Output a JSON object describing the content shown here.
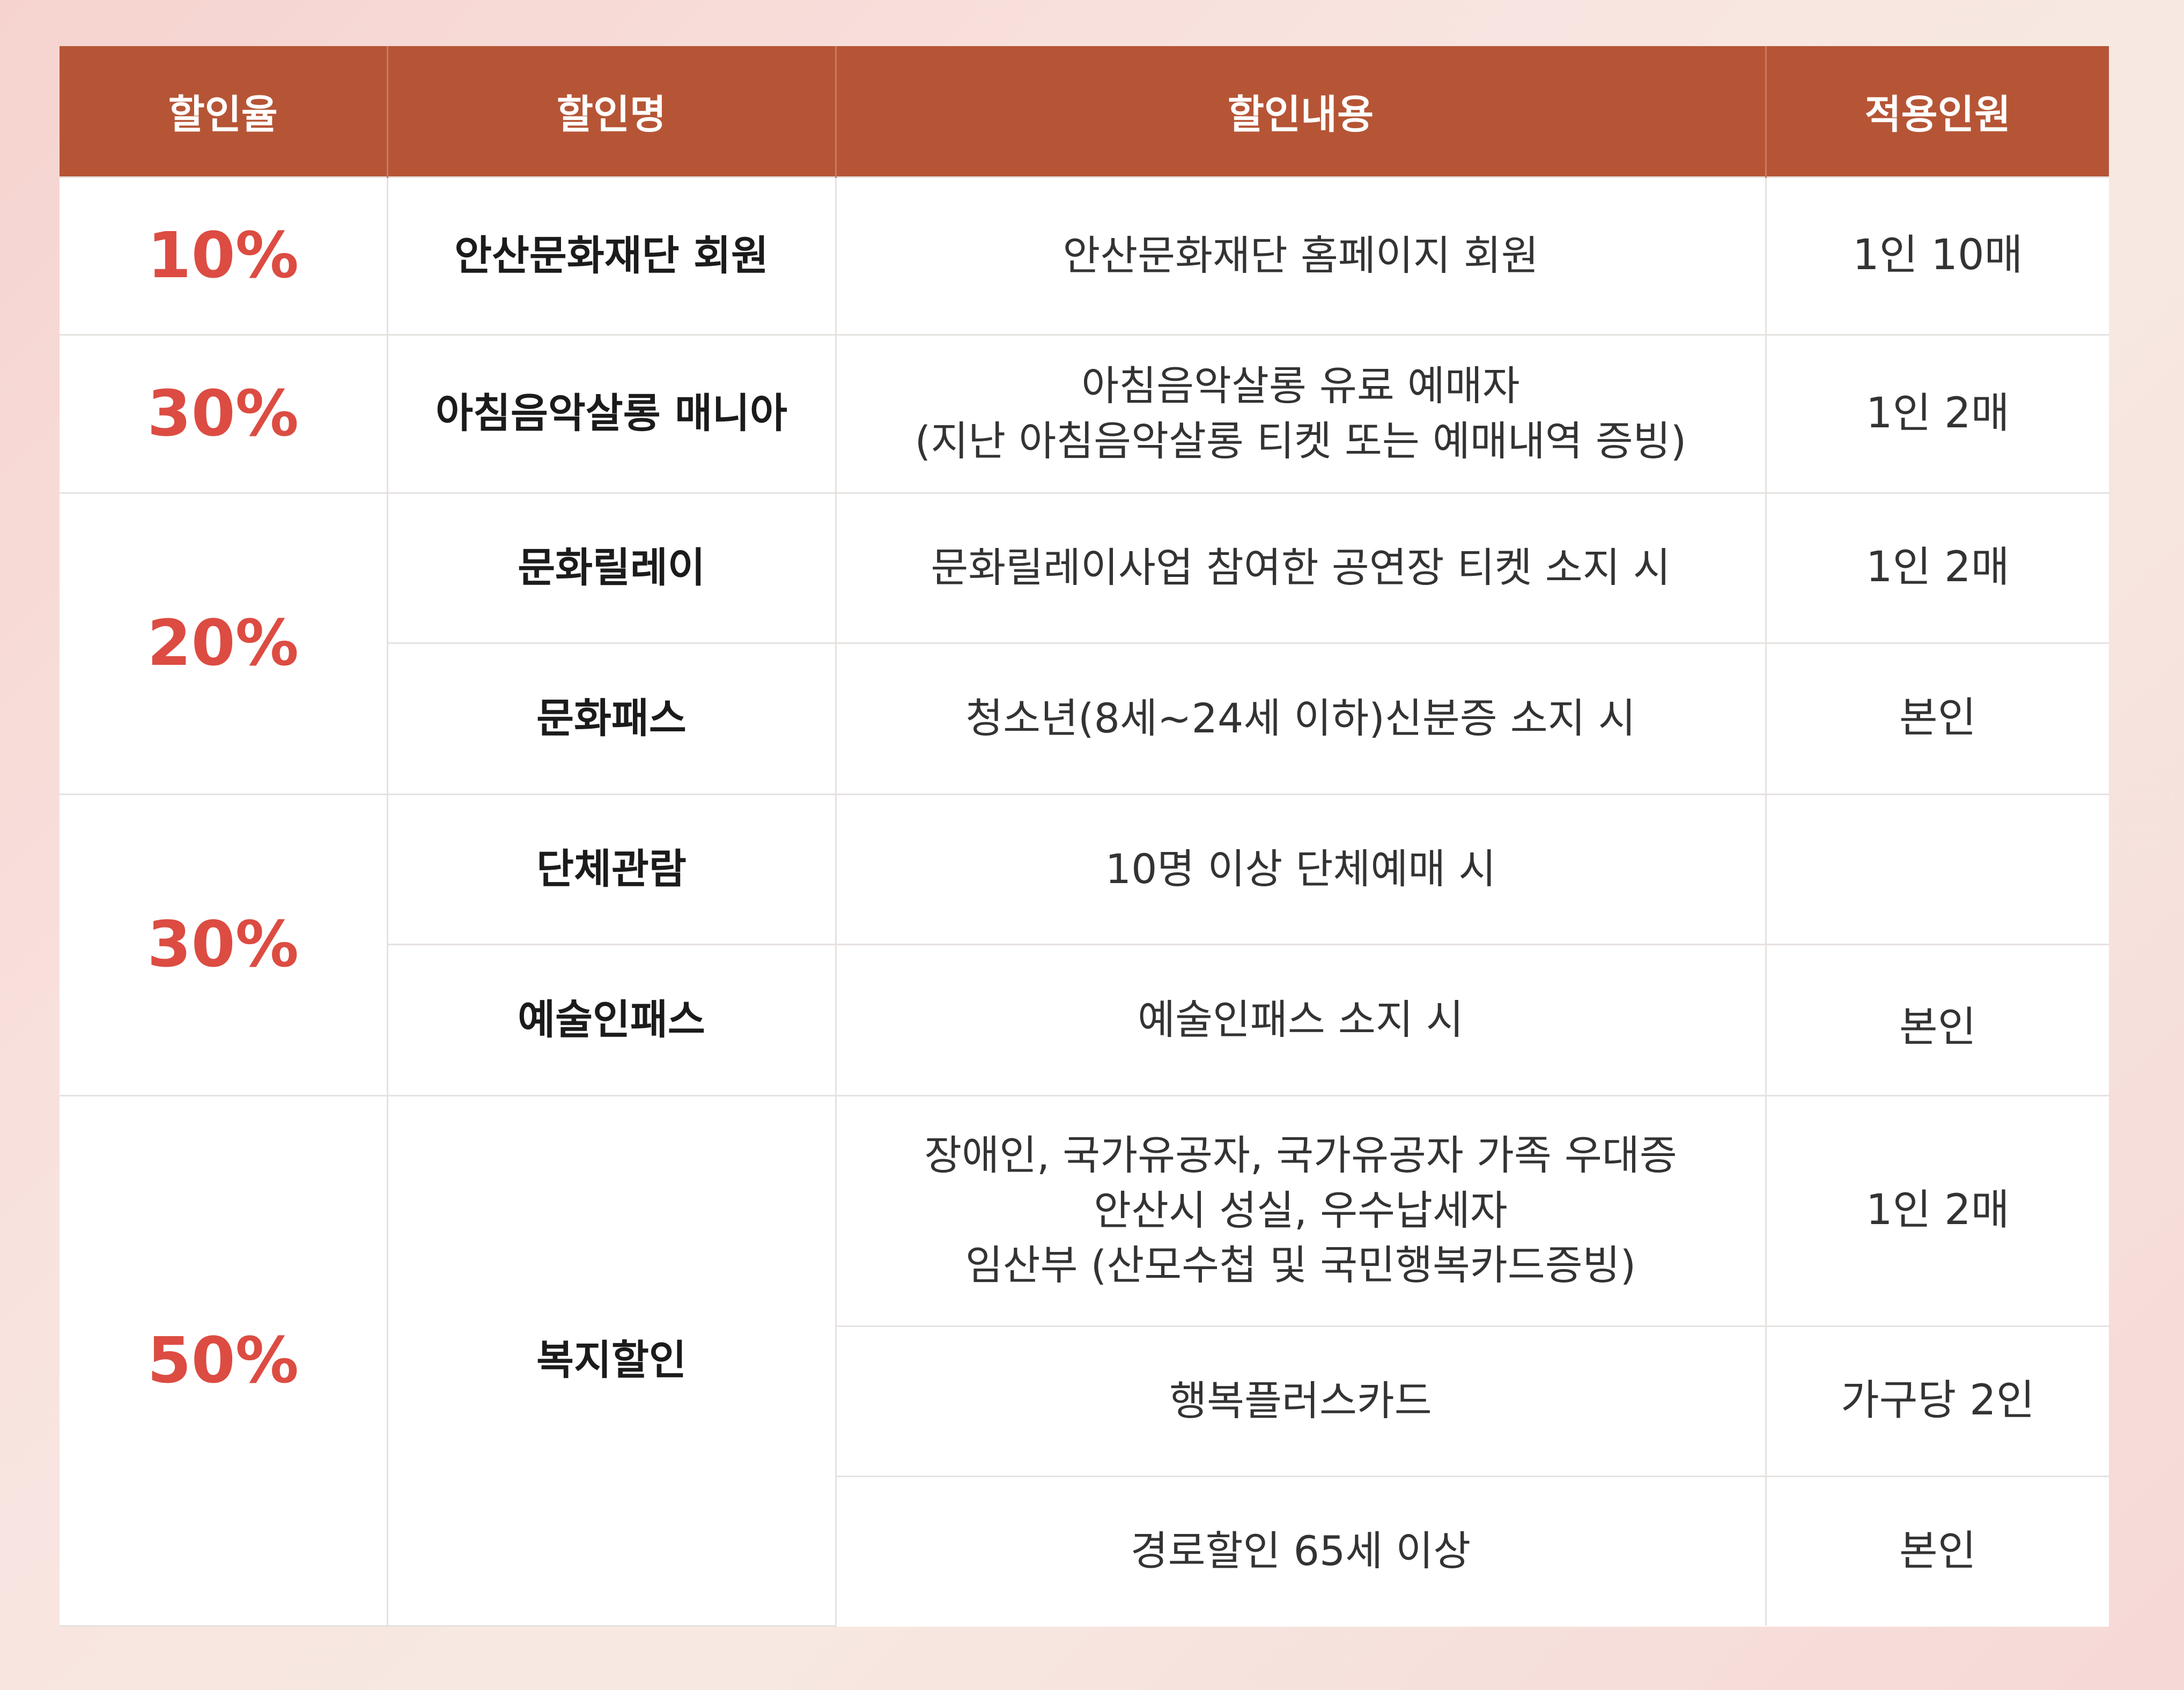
{
  "table": {
    "headers": {
      "rate": "할인율",
      "name": "할인명",
      "content": "할인내용",
      "people": "적용인원"
    },
    "rows": [
      {
        "rate": "10%",
        "name": "안산문화재단 회원",
        "content": [
          "안산문화재단 홈페이지 회원"
        ],
        "people": "1인 10매"
      },
      {
        "rate": "30%",
        "name": "아침음악살롱 매니아",
        "content": [
          "아침음악살롱 유료 예매자",
          "(지난 아침음악살롱 티켓 또는 예매내역 증빙)"
        ],
        "people": "1인 2매"
      },
      {
        "rate": "20%",
        "name": "문화릴레이",
        "content": [
          "문화릴레이사업 참여한 공연장 티켓 소지 시"
        ],
        "people": "1인 2매"
      },
      {
        "name": "문화패스",
        "content": [
          "청소년(8세~24세 이하)신분증 소지 시"
        ],
        "people": "본인"
      },
      {
        "rate": "30%",
        "name": "단체관람",
        "content": [
          "10명 이상 단체예매 시"
        ],
        "people": ""
      },
      {
        "name": "예술인패스",
        "content": [
          "예술인패스 소지 시"
        ],
        "people": "본인"
      },
      {
        "rate": "50%",
        "name": "복지할인",
        "content": [
          "장애인, 국가유공자, 국가유공자 가족 우대증",
          "안산시 성실, 우수납세자",
          "임산부 (산모수첩 및 국민행복카드증빙)"
        ],
        "people": "1인 2매"
      },
      {
        "content": [
          "행복플러스카드"
        ],
        "people": "가구당 2인"
      },
      {
        "content": [
          "경로할인 65세 이상"
        ],
        "people": "본인"
      }
    ]
  },
  "colors": {
    "header_bg": "#b65536",
    "header_text": "#ffffff",
    "rate_text": "#dc4c42",
    "border": "#e6e2e0"
  }
}
